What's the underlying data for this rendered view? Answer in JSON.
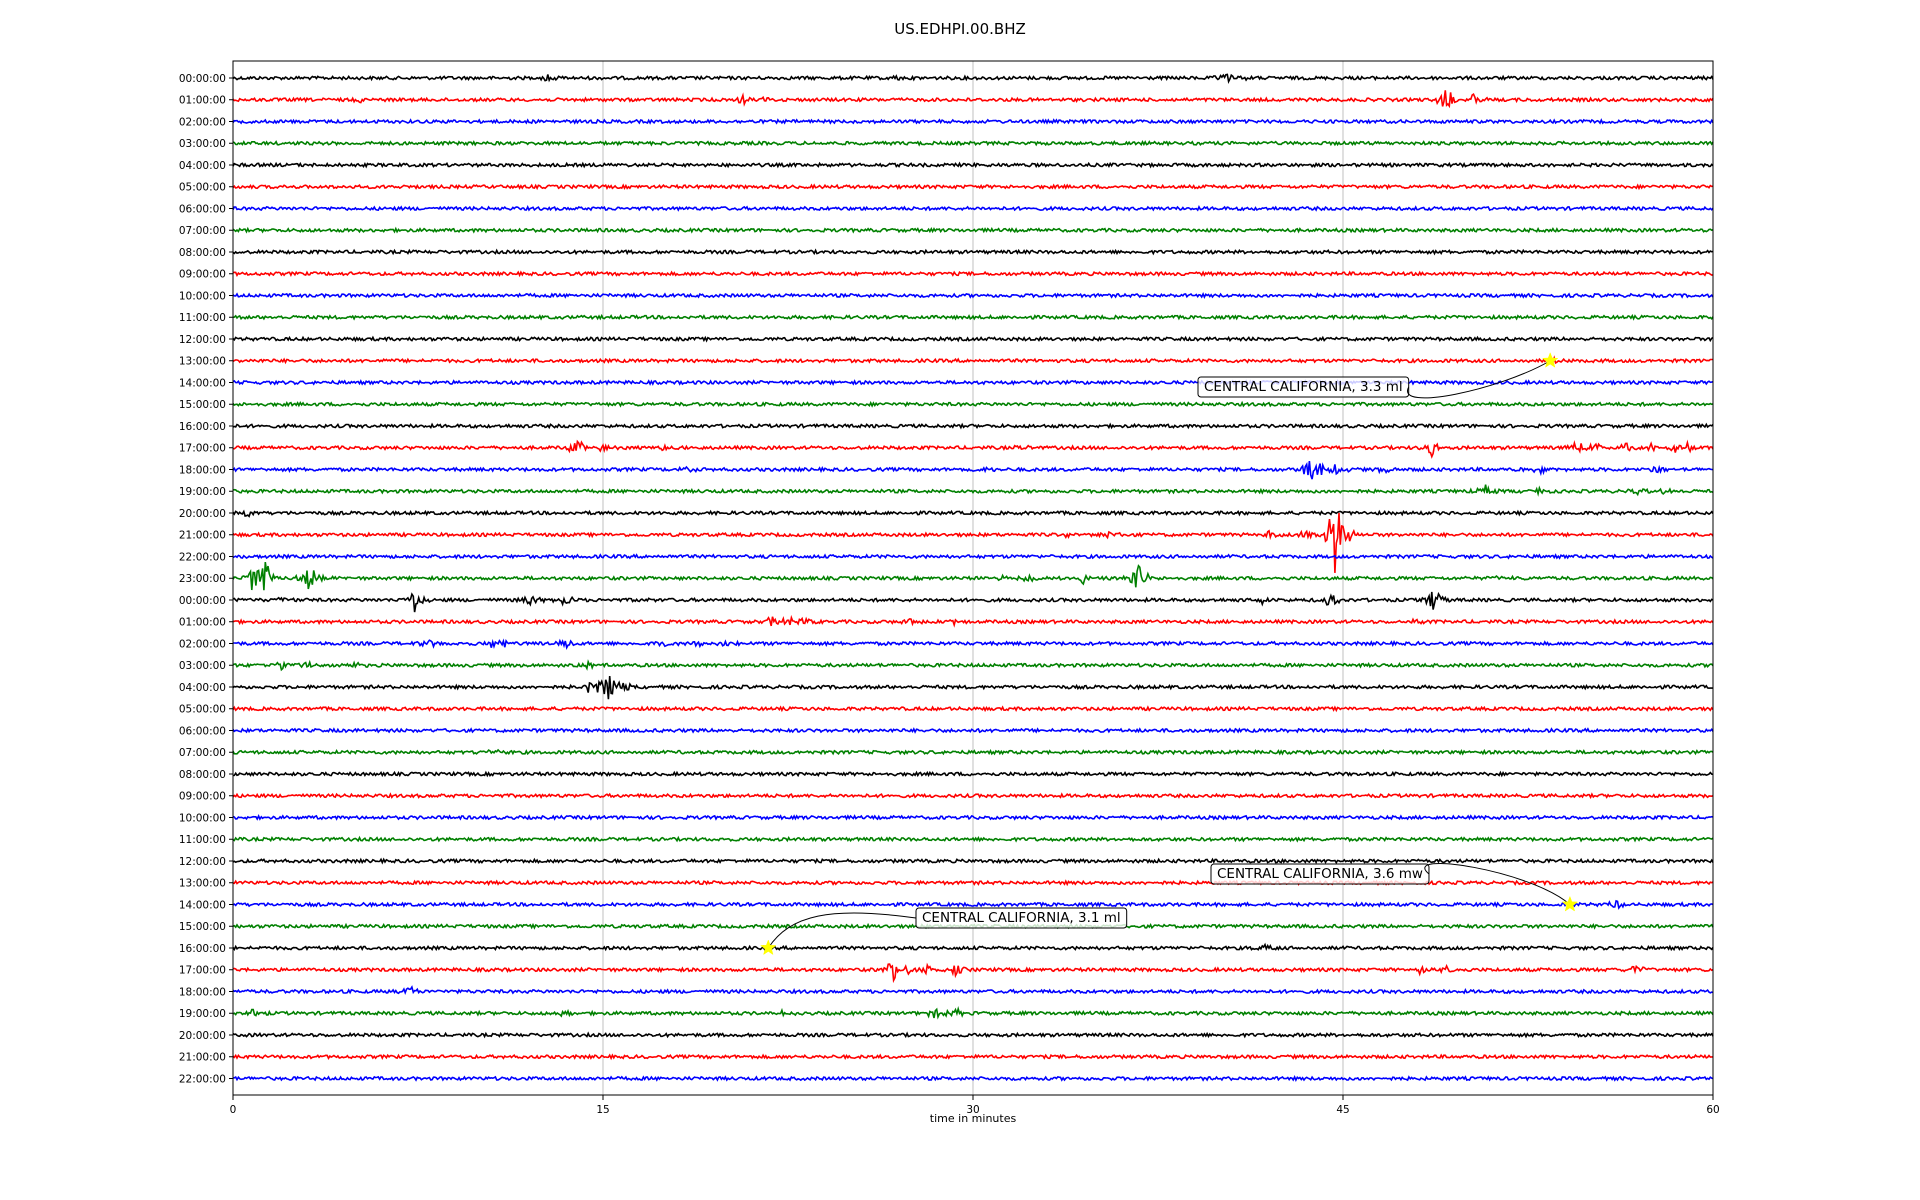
{
  "chart_data": {
    "type": "line",
    "title": "US.EDHPI.00.BHZ",
    "xlabel": "time in minutes",
    "ylabel": "",
    "xlim": [
      0,
      60
    ],
    "x_ticks": [
      "0",
      "15",
      "30",
      "45",
      "60"
    ],
    "grid": "vertical",
    "series_colors": [
      "#000000",
      "#ff0000",
      "#0000ff",
      "#008000"
    ],
    "rows": [
      {
        "label": "00:00:00",
        "events": [
          [
            12.8,
            4
          ],
          [
            27,
            3
          ],
          [
            40.3,
            6
          ],
          [
            40.8,
            3
          ]
        ]
      },
      {
        "label": "01:00:00",
        "events": [
          [
            5.2,
            3
          ],
          [
            20.8,
            7
          ],
          [
            21.5,
            4
          ],
          [
            49.2,
            14
          ],
          [
            50.3,
            6
          ]
        ]
      },
      {
        "label": "02:00:00",
        "events": []
      },
      {
        "label": "03:00:00",
        "events": []
      },
      {
        "label": "04:00:00",
        "events": []
      },
      {
        "label": "05:00:00",
        "events": []
      },
      {
        "label": "06:00:00",
        "events": []
      },
      {
        "label": "07:00:00",
        "events": []
      },
      {
        "label": "08:00:00",
        "events": []
      },
      {
        "label": "09:00:00",
        "events": []
      },
      {
        "label": "10:00:00",
        "events": []
      },
      {
        "label": "11:00:00",
        "events": []
      },
      {
        "label": "12:00:00",
        "events": []
      },
      {
        "label": "13:00:00",
        "events": [
          [
            53.8,
            4
          ]
        ]
      },
      {
        "label": "14:00:00",
        "events": []
      },
      {
        "label": "15:00:00",
        "events": []
      },
      {
        "label": "16:00:00",
        "events": []
      },
      {
        "label": "17:00:00",
        "events": [
          [
            14,
            12
          ],
          [
            15,
            4
          ],
          [
            17.5,
            3
          ],
          [
            32,
            3
          ],
          [
            48.6,
            8
          ],
          [
            54.5,
            9
          ],
          [
            55.3,
            7
          ],
          [
            56.5,
            6
          ],
          [
            57.5,
            5
          ],
          [
            58.5,
            6
          ],
          [
            59,
            5
          ]
        ]
      },
      {
        "label": "18:00:00",
        "events": [
          [
            18.5,
            3
          ],
          [
            30.5,
            3
          ],
          [
            43.6,
            16
          ],
          [
            44.2,
            10
          ],
          [
            44.7,
            8
          ],
          [
            46.8,
            6
          ],
          [
            53,
            6
          ],
          [
            57.8,
            5
          ]
        ]
      },
      {
        "label": "19:00:00",
        "events": [
          [
            50.8,
            6
          ],
          [
            53,
            3
          ],
          [
            57,
            3
          ],
          [
            58,
            3
          ]
        ]
      },
      {
        "label": "20:00:00",
        "events": [
          [
            0.7,
            5
          ]
        ]
      },
      {
        "label": "21:00:00",
        "events": [
          [
            34,
            5
          ],
          [
            35.5,
            4
          ],
          [
            42,
            5
          ],
          [
            43.5,
            5
          ],
          [
            44.7,
            48
          ],
          [
            45.3,
            6
          ]
        ]
      },
      {
        "label": "22:00:00",
        "events": []
      },
      {
        "label": "23:00:00",
        "events": [
          [
            0.8,
            14
          ],
          [
            1.3,
            20
          ],
          [
            3.1,
            14
          ],
          [
            3.6,
            5
          ],
          [
            31,
            4
          ],
          [
            32.2,
            4
          ],
          [
            34.5,
            7
          ],
          [
            36.7,
            17
          ],
          [
            51.5,
            3
          ]
        ]
      },
      {
        "label": "00:00:00",
        "events": [
          [
            2,
            4
          ],
          [
            7.4,
            14
          ],
          [
            12,
            8
          ],
          [
            13.5,
            6
          ],
          [
            16.8,
            3
          ],
          [
            41.7,
            4
          ],
          [
            44.5,
            8
          ],
          [
            48.7,
            14
          ]
        ]
      },
      {
        "label": "01:00:00",
        "events": [
          [
            21.8,
            7
          ],
          [
            22.5,
            5
          ],
          [
            23.2,
            4
          ],
          [
            27.5,
            4
          ],
          [
            29.2,
            4
          ],
          [
            48,
            3
          ]
        ]
      },
      {
        "label": "02:00:00",
        "events": [
          [
            8,
            4
          ],
          [
            10.5,
            5
          ],
          [
            11,
            4
          ],
          [
            13.5,
            5
          ],
          [
            17.5,
            4
          ],
          [
            19,
            5
          ],
          [
            20,
            4
          ]
        ]
      },
      {
        "label": "03:00:00",
        "events": [
          [
            2,
            6
          ],
          [
            3,
            4
          ],
          [
            5,
            3
          ],
          [
            14.5,
            4
          ]
        ]
      },
      {
        "label": "04:00:00",
        "events": [
          [
            14.5,
            8
          ],
          [
            15.2,
            16
          ],
          [
            15.8,
            6
          ]
        ]
      },
      {
        "label": "05:00:00",
        "events": []
      },
      {
        "label": "06:00:00",
        "events": []
      },
      {
        "label": "07:00:00",
        "events": [
          [
            10.5,
            3
          ]
        ]
      },
      {
        "label": "08:00:00",
        "events": []
      },
      {
        "label": "09:00:00",
        "events": []
      },
      {
        "label": "10:00:00",
        "events": []
      },
      {
        "label": "11:00:00",
        "events": []
      },
      {
        "label": "12:00:00",
        "events": []
      },
      {
        "label": "13:00:00",
        "events": []
      },
      {
        "label": "14:00:00",
        "events": [
          [
            56.2,
            6
          ]
        ]
      },
      {
        "label": "15:00:00",
        "events": []
      },
      {
        "label": "16:00:00",
        "events": [
          [
            41.8,
            5
          ]
        ]
      },
      {
        "label": "17:00:00",
        "events": [
          [
            26.8,
            12
          ],
          [
            27.4,
            7
          ],
          [
            28.2,
            5
          ],
          [
            29.3,
            6
          ],
          [
            48.2,
            5
          ],
          [
            49.2,
            3
          ],
          [
            56.8,
            6
          ]
        ]
      },
      {
        "label": "18:00:00",
        "events": [
          [
            7.2,
            5
          ]
        ]
      },
      {
        "label": "19:00:00",
        "events": [
          [
            0.8,
            4
          ],
          [
            13.5,
            4
          ],
          [
            22.4,
            3
          ],
          [
            28.4,
            6
          ],
          [
            29.3,
            5
          ]
        ]
      },
      {
        "label": "20:00:00",
        "events": []
      },
      {
        "label": "21:00:00",
        "events": []
      },
      {
        "label": "22:00:00",
        "events": []
      }
    ],
    "annotations": [
      {
        "text": "CENTRAL CALIFORNIA, 3.3 ml",
        "row": 13,
        "minute": 53.4
      },
      {
        "text": "CENTRAL CALIFORNIA, 3.6 mw",
        "row": 38,
        "minute": 54.2
      },
      {
        "text": "CENTRAL CALIFORNIA, 3.1 ml",
        "row": 40,
        "minute": 21.7
      }
    ],
    "marker_color": "#ffff00"
  }
}
